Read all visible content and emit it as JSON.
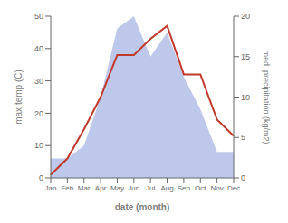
{
  "chart_data": {
    "type": "line",
    "xlabel": "date (month)",
    "ylabel": "max temp (C)",
    "y2label": "med. precipitation (kg/m2)",
    "categories": [
      "Jan",
      "Feb",
      "Mar",
      "Apr",
      "May",
      "Jun",
      "Jul",
      "Aug",
      "Sep",
      "Oct",
      "Nov",
      "Dec"
    ],
    "series": [
      {
        "type": "area",
        "axis": "y2",
        "color": "#b3bee8",
        "values": [
          2.4,
          2.4,
          4.0,
          10.0,
          18.5,
          20.0,
          15.0,
          18.0,
          12.5,
          8.5,
          3.2,
          3.2
        ]
      },
      {
        "type": "line",
        "color": "#c0392b",
        "values": [
          1,
          6,
          15,
          25,
          38,
          38,
          43,
          47,
          32,
          32,
          18,
          13
        ]
      }
    ],
    "ylim": [
      0,
      50
    ],
    "yticks": [
      0,
      10,
      20,
      30,
      40,
      50
    ],
    "y2lim": [
      0,
      20
    ],
    "y2ticks": [
      0,
      5,
      10,
      15,
      20
    ],
    "grid": false
  }
}
